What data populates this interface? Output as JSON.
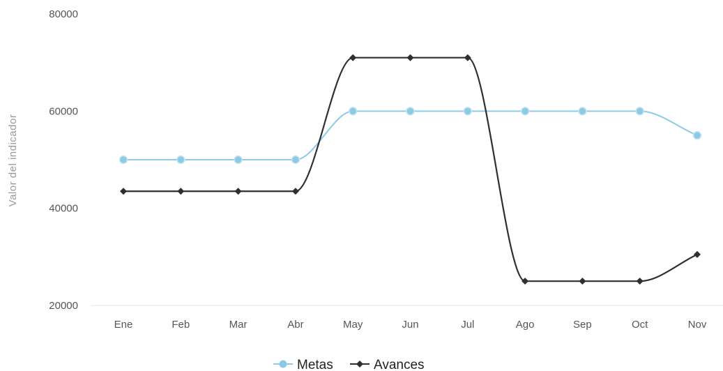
{
  "chart_data": {
    "type": "line",
    "ylabel": "Valor del indicador",
    "xlabel": "",
    "categories": [
      "Ene",
      "Feb",
      "Mar",
      "Abr",
      "May",
      "Jun",
      "Jul",
      "Ago",
      "Sep",
      "Oct",
      "Nov"
    ],
    "ylim": [
      20000,
      80000
    ],
    "yticks": [
      "20000",
      "40000",
      "60000",
      "80000"
    ],
    "grid": false,
    "legend_position": "bottom-center",
    "smooth": true,
    "series": [
      {
        "name": "Metas",
        "color": "#8ecae6",
        "marker": "circle",
        "values": [
          50000,
          50000,
          50000,
          50000,
          60000,
          60000,
          60000,
          60000,
          60000,
          60000,
          55000
        ]
      },
      {
        "name": "Avances",
        "color": "#2f2f2f",
        "marker": "diamond",
        "values": [
          43500,
          43500,
          43500,
          43500,
          71000,
          71000,
          71000,
          25000,
          25000,
          25000,
          30500
        ]
      }
    ]
  }
}
